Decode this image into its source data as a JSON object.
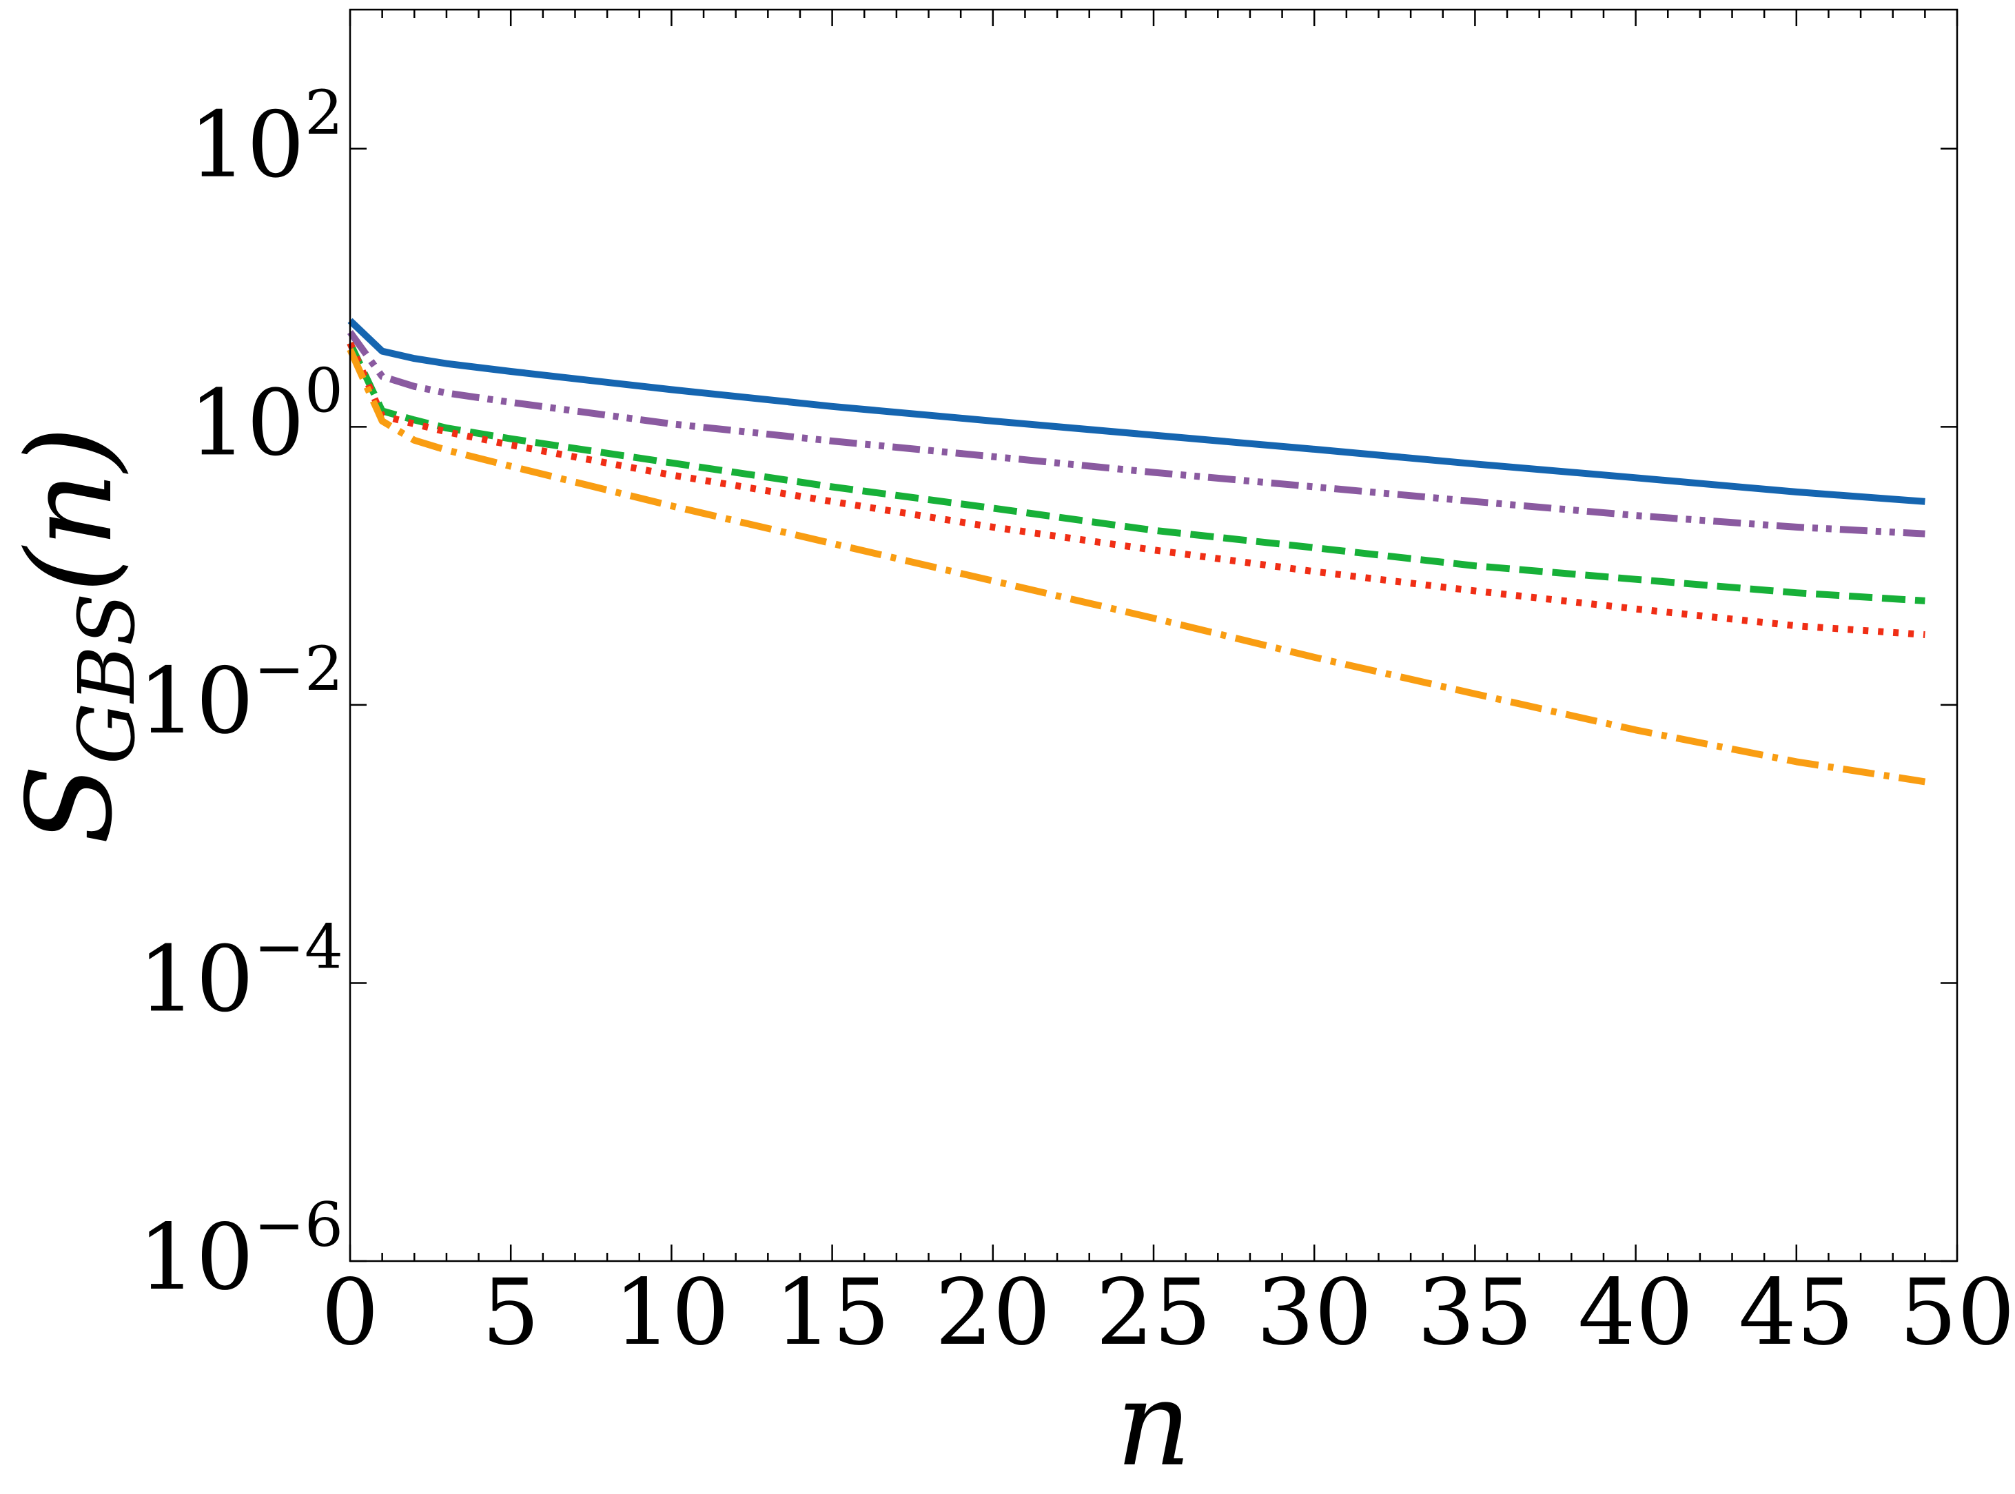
{
  "chart_data": {
    "type": "line",
    "title": "",
    "xlabel": "n",
    "ylabel": {
      "base": "S",
      "sub": "GBS",
      "arg": "(n)"
    },
    "xlim": [
      0,
      50
    ],
    "ylim": [
      1e-06,
      1000
    ],
    "yscale": "log",
    "grid": false,
    "legend": "none",
    "x_ticks": [
      "0",
      "5",
      "10",
      "15",
      "20",
      "25",
      "30",
      "35",
      "40",
      "45",
      "50"
    ],
    "y_ticks": [
      {
        "value": 1e-06,
        "base": "10",
        "exp": "−6"
      },
      {
        "value": 0.0001,
        "base": "10",
        "exp": "−4"
      },
      {
        "value": 0.01,
        "base": "10",
        "exp": "−2"
      },
      {
        "value": 1,
        "base": "10",
        "exp": "0"
      },
      {
        "value": 100,
        "base": "10",
        "exp": "2"
      }
    ],
    "series": [
      {
        "color": "#1565b0",
        "style": "solid",
        "x": [
          0,
          1,
          2,
          3,
          5,
          10,
          15,
          20,
          25,
          30,
          35,
          40,
          45,
          49
        ],
        "y": [
          5.8,
          3.5,
          3.1,
          2.85,
          2.5,
          1.85,
          1.4,
          1.1,
          0.87,
          0.69,
          0.54,
          0.43,
          0.34,
          0.29
        ]
      },
      {
        "color": "#8a5aa0",
        "style": "dashdotdot",
        "x": [
          0,
          1,
          2,
          3,
          5,
          10,
          15,
          20,
          25,
          30,
          35,
          40,
          45,
          49
        ],
        "y": [
          4.8,
          2.3,
          1.95,
          1.75,
          1.5,
          1.05,
          0.79,
          0.61,
          0.47,
          0.37,
          0.29,
          0.23,
          0.19,
          0.17
        ]
      },
      {
        "color": "#17b038",
        "style": "dashed",
        "x": [
          0,
          1,
          2,
          3,
          5,
          10,
          15,
          20,
          25,
          30,
          35,
          40,
          45,
          49
        ],
        "y": [
          4.0,
          1.3,
          1.12,
          0.98,
          0.82,
          0.55,
          0.37,
          0.26,
          0.18,
          0.135,
          0.1,
          0.08,
          0.064,
          0.056
        ]
      },
      {
        "color": "#f02e15",
        "style": "dotted",
        "x": [
          0,
          1,
          2,
          3,
          5,
          10,
          15,
          20,
          25,
          30,
          35,
          40,
          45,
          49
        ],
        "y": [
          4.0,
          1.2,
          1.05,
          0.92,
          0.74,
          0.45,
          0.29,
          0.19,
          0.13,
          0.091,
          0.066,
          0.049,
          0.037,
          0.032
        ]
      },
      {
        "color": "#f99d12",
        "style": "dashdot",
        "x": [
          0,
          1,
          2,
          3,
          5,
          10,
          15,
          20,
          25,
          30,
          35,
          40,
          45,
          49
        ],
        "y": [
          3.6,
          1.1,
          0.8,
          0.68,
          0.52,
          0.27,
          0.145,
          0.078,
          0.042,
          0.022,
          0.012,
          0.0066,
          0.0039,
          0.0028
        ]
      }
    ]
  }
}
